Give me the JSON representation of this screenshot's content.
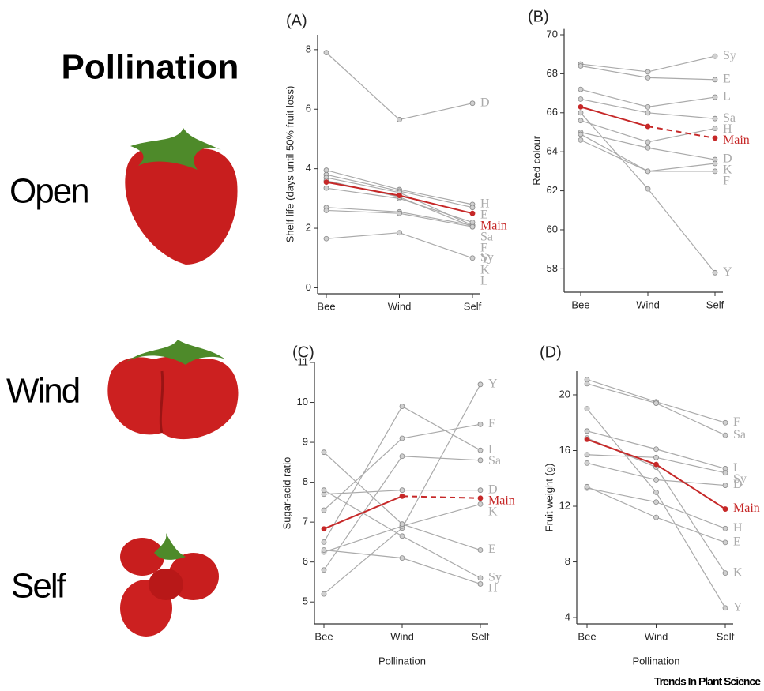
{
  "labels": {
    "title": "Pollination",
    "rows": [
      "Open",
      "Wind",
      "Self"
    ],
    "credit": "Trends In Plant Science"
  },
  "chart_data": [
    {
      "type": "line",
      "title": "(A)",
      "ylabel": "Shelf life (days until 50% fruit loss)",
      "categories": [
        "Bee",
        "Wind",
        "Self"
      ],
      "ylim": [
        -0.2,
        8.5
      ],
      "yticks": [
        0,
        2,
        4,
        6,
        8
      ],
      "series": [
        {
          "name": "D",
          "color": "#aaaaaa",
          "values": [
            7.9,
            5.65,
            6.2
          ]
        },
        {
          "name": "H",
          "color": "#aaaaaa",
          "values": [
            3.95,
            3.3,
            2.8
          ]
        },
        {
          "name": "E",
          "color": "#aaaaaa",
          "values": [
            3.8,
            3.25,
            2.7
          ]
        },
        {
          "name": "Sa",
          "color": "#aaaaaa",
          "values": [
            3.35,
            3.0,
            2.2
          ]
        },
        {
          "name": "F",
          "color": "#aaaaaa",
          "values": [
            2.7,
            2.55,
            2.1
          ]
        },
        {
          "name": "K",
          "color": "#aaaaaa",
          "values": [
            2.6,
            2.5,
            2.05
          ]
        },
        {
          "name": "Y",
          "color": "#aaaaaa",
          "values": [
            3.7,
            3.2,
            2.1
          ]
        },
        {
          "name": "L",
          "color": "#aaaaaa",
          "values": [
            3.6,
            3.05,
            2.05
          ]
        },
        {
          "name": "Sy",
          "color": "#aaaaaa",
          "values": [
            1.65,
            1.85,
            1.0
          ]
        },
        {
          "name": "Main",
          "color": "#c62828",
          "values": [
            3.55,
            3.1,
            2.5
          ]
        }
      ]
    },
    {
      "type": "line",
      "title": "(B)",
      "ylabel": "Red colour",
      "categories": [
        "Bee",
        "Wind",
        "Self"
      ],
      "ylim": [
        56.8,
        70.3
      ],
      "yticks": [
        58,
        60,
        62,
        64,
        66,
        68,
        70
      ],
      "series": [
        {
          "name": "Sy",
          "color": "#aaaaaa",
          "values": [
            68.5,
            68.1,
            68.9
          ]
        },
        {
          "name": "E",
          "color": "#aaaaaa",
          "values": [
            68.4,
            67.8,
            67.7
          ]
        },
        {
          "name": "L",
          "color": "#aaaaaa",
          "values": [
            67.2,
            66.3,
            66.8
          ]
        },
        {
          "name": "Sa",
          "color": "#aaaaaa",
          "values": [
            66.7,
            66.0,
            65.7
          ]
        },
        {
          "name": "H",
          "color": "#aaaaaa",
          "values": [
            65.6,
            64.5,
            65.2
          ]
        },
        {
          "name": "D",
          "color": "#aaaaaa",
          "values": [
            65.0,
            64.2,
            63.6
          ]
        },
        {
          "name": "K",
          "color": "#aaaaaa",
          "values": [
            64.9,
            63.0,
            63.4
          ]
        },
        {
          "name": "F",
          "color": "#aaaaaa",
          "values": [
            64.6,
            63.0,
            63.0
          ]
        },
        {
          "name": "Y",
          "color": "#aaaaaa",
          "values": [
            66.0,
            62.1,
            57.8
          ]
        },
        {
          "name": "Main",
          "color": "#c62828",
          "values": [
            66.3,
            65.3,
            64.7
          ],
          "last_segment_dashed": true
        }
      ]
    },
    {
      "type": "line",
      "title": "(C)",
      "ylabel": "Sugar-acid ratio",
      "xlabel": "Pollination",
      "categories": [
        "Bee",
        "Wind",
        "Self"
      ],
      "ylim": [
        4.45,
        11
      ],
      "yticks": [
        5,
        6,
        7,
        8,
        9,
        10,
        11
      ],
      "series": [
        {
          "name": "Y",
          "color": "#aaaaaa",
          "values": [
            5.2,
            6.85,
            10.45
          ]
        },
        {
          "name": "F",
          "color": "#aaaaaa",
          "values": [
            7.3,
            9.1,
            9.45
          ]
        },
        {
          "name": "L",
          "color": "#aaaaaa",
          "values": [
            6.5,
            9.9,
            8.8
          ]
        },
        {
          "name": "Sa",
          "color": "#aaaaaa",
          "values": [
            5.8,
            8.65,
            8.55
          ]
        },
        {
          "name": "D",
          "color": "#aaaaaa",
          "values": [
            7.7,
            7.8,
            7.8
          ]
        },
        {
          "name": "K",
          "color": "#aaaaaa",
          "values": [
            6.25,
            6.9,
            7.45
          ]
        },
        {
          "name": "E",
          "color": "#aaaaaa",
          "values": [
            8.75,
            6.95,
            6.3
          ]
        },
        {
          "name": "Sy",
          "color": "#aaaaaa",
          "values": [
            7.8,
            6.65,
            5.6
          ]
        },
        {
          "name": "H",
          "color": "#aaaaaa",
          "values": [
            6.3,
            6.1,
            5.45
          ]
        },
        {
          "name": "Main",
          "color": "#c62828",
          "values": [
            6.83,
            7.65,
            7.6
          ],
          "last_segment_dashed": true
        }
      ]
    },
    {
      "type": "line",
      "title": "(D)",
      "ylabel": "Fruit weight (g)",
      "xlabel": "Pollination",
      "categories": [
        "Bee",
        "Wind",
        "Self"
      ],
      "ylim": [
        3.55,
        21.7
      ],
      "yticks": [
        4,
        8,
        12,
        16,
        20
      ],
      "series": [
        {
          "name": "F",
          "color": "#aaaaaa",
          "values": [
            21.1,
            19.5,
            18.0
          ]
        },
        {
          "name": "Sa",
          "color": "#aaaaaa",
          "values": [
            20.8,
            19.4,
            17.1
          ]
        },
        {
          "name": "L",
          "color": "#aaaaaa",
          "values": [
            17.4,
            16.1,
            14.7
          ]
        },
        {
          "name": "Sy",
          "color": "#aaaaaa",
          "values": [
            15.7,
            15.5,
            14.4
          ]
        },
        {
          "name": "D",
          "color": "#aaaaaa",
          "values": [
            15.1,
            13.9,
            13.5
          ]
        },
        {
          "name": "H",
          "color": "#aaaaaa",
          "values": [
            13.3,
            12.3,
            10.4
          ]
        },
        {
          "name": "E",
          "color": "#aaaaaa",
          "values": [
            13.4,
            11.2,
            9.4
          ]
        },
        {
          "name": "K",
          "color": "#aaaaaa",
          "values": [
            16.9,
            14.8,
            7.2
          ]
        },
        {
          "name": "Y",
          "color": "#aaaaaa",
          "values": [
            19.0,
            13.0,
            4.7
          ]
        },
        {
          "name": "Main",
          "color": "#c62828",
          "values": [
            16.8,
            15.0,
            11.8
          ]
        }
      ]
    }
  ]
}
